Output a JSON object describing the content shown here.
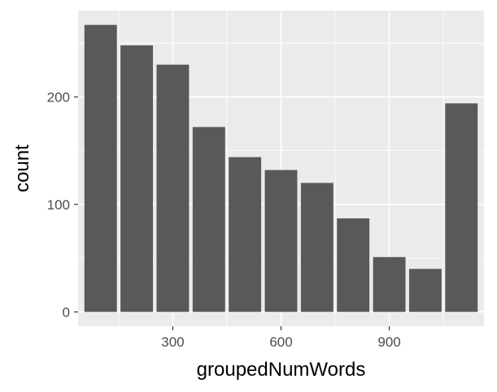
{
  "chart_data": {
    "type": "bar",
    "xlabel": "groupedNumWords",
    "ylabel": "count",
    "x": [
      100,
      200,
      300,
      400,
      500,
      600,
      700,
      800,
      900,
      1000,
      1100
    ],
    "values": [
      267,
      248,
      230,
      172,
      144,
      132,
      120,
      87,
      51,
      40,
      194
    ],
    "bar_width": 90,
    "xlim": [
      37.5,
      1162.5
    ],
    "ylim": [
      -13.35,
      280.35
    ],
    "x_ticks": [
      300,
      600,
      900
    ],
    "y_ticks": [
      0,
      100,
      200
    ],
    "x_minor_ticks": [
      150,
      450,
      750,
      1050
    ],
    "y_minor_ticks": [
      50,
      150,
      250
    ],
    "grid": true,
    "legend": "none",
    "colors": {
      "bar": "#595959",
      "panel": "#ebebeb",
      "grid": "#ffffff",
      "tick": "#333333"
    }
  }
}
